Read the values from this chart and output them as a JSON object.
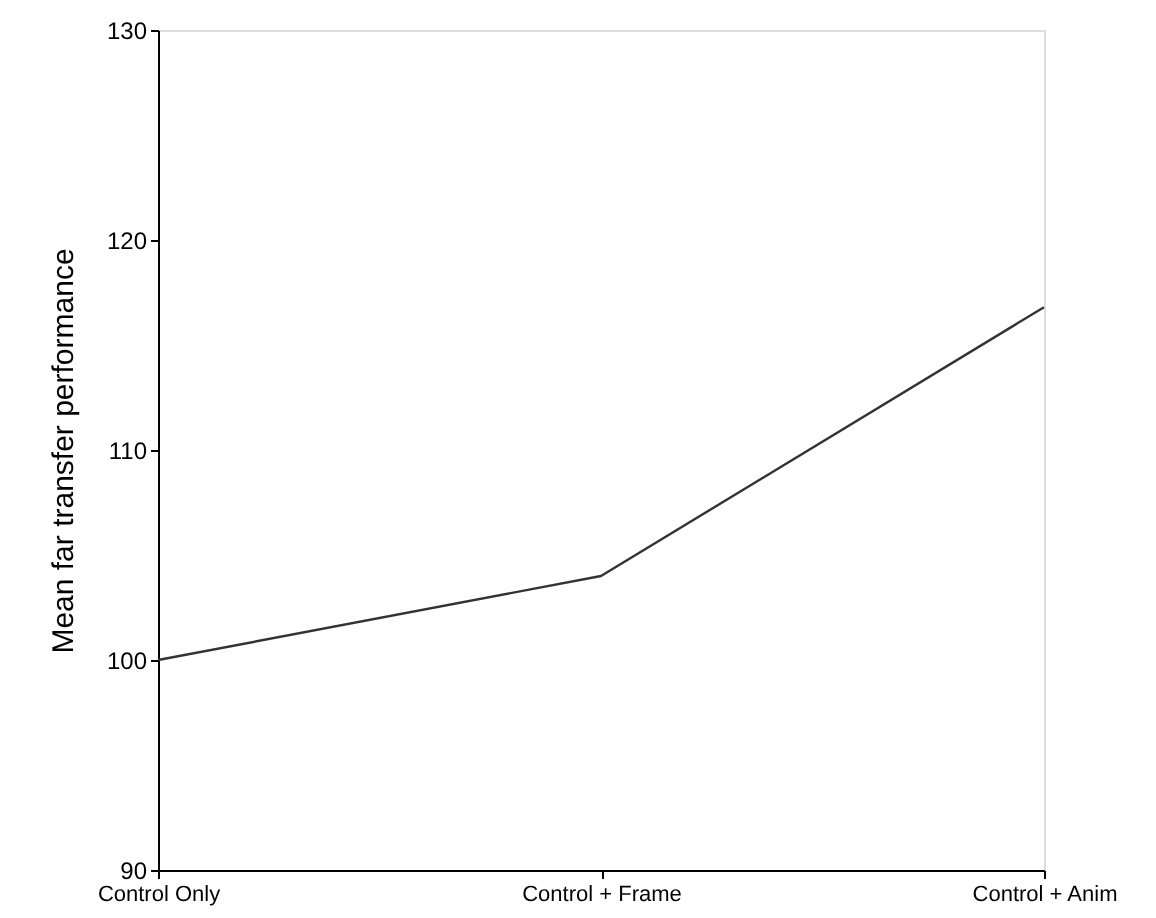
{
  "chart_data": {
    "type": "line",
    "ylabel": "Mean far transfer performance",
    "categories": [
      "Control Only",
      "Control + Frame",
      "Control + Anim"
    ],
    "series": [
      {
        "color": "#333333",
        "values": [
          100,
          104,
          116.8
        ]
      }
    ],
    "ylim": [
      90,
      130
    ],
    "yticks": [
      90,
      100,
      110,
      120,
      130
    ],
    "grid": false,
    "marker": "none",
    "line_style": "solid"
  }
}
